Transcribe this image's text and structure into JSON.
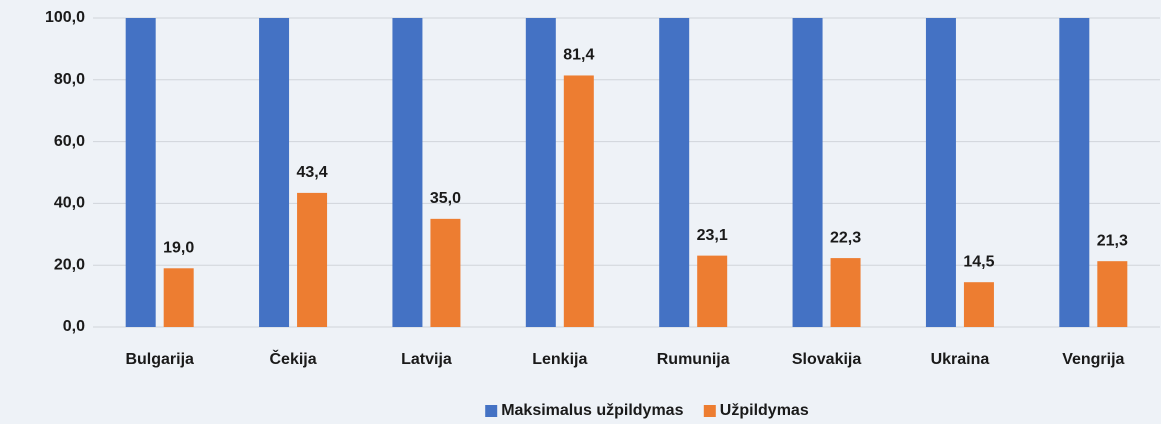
{
  "chart_data": {
    "type": "bar",
    "categories": [
      "Bulgarija",
      "Čekija",
      "Latvija",
      "Lenkija",
      "Rumunija",
      "Slovakija",
      "Ukraina",
      "Vengrija"
    ],
    "series": [
      {
        "name": "Maksimalus užpildymas",
        "color": "#4472c4",
        "values": [
          100,
          100,
          100,
          100,
          100,
          100,
          100,
          100
        ]
      },
      {
        "name": "Užpildymas",
        "color": "#ed7d31",
        "values": [
          19.0,
          43.4,
          35.0,
          81.4,
          23.1,
          22.3,
          14.5,
          21.3
        ],
        "value_labels": [
          "19,0",
          "43,4",
          "35,0",
          "81,4",
          "23,1",
          "22,3",
          "14,5",
          "21,3"
        ]
      }
    ],
    "ylim": [
      0,
      100
    ],
    "yticks": [
      {
        "value": 0,
        "label": "0,0"
      },
      {
        "value": 20,
        "label": "20,0"
      },
      {
        "value": 40,
        "label": "40,0"
      },
      {
        "value": 60,
        "label": "60,0"
      },
      {
        "value": 80,
        "label": "80,0"
      },
      {
        "value": 100,
        "label": "100,0"
      }
    ],
    "grid": true,
    "legend": "bottom"
  }
}
